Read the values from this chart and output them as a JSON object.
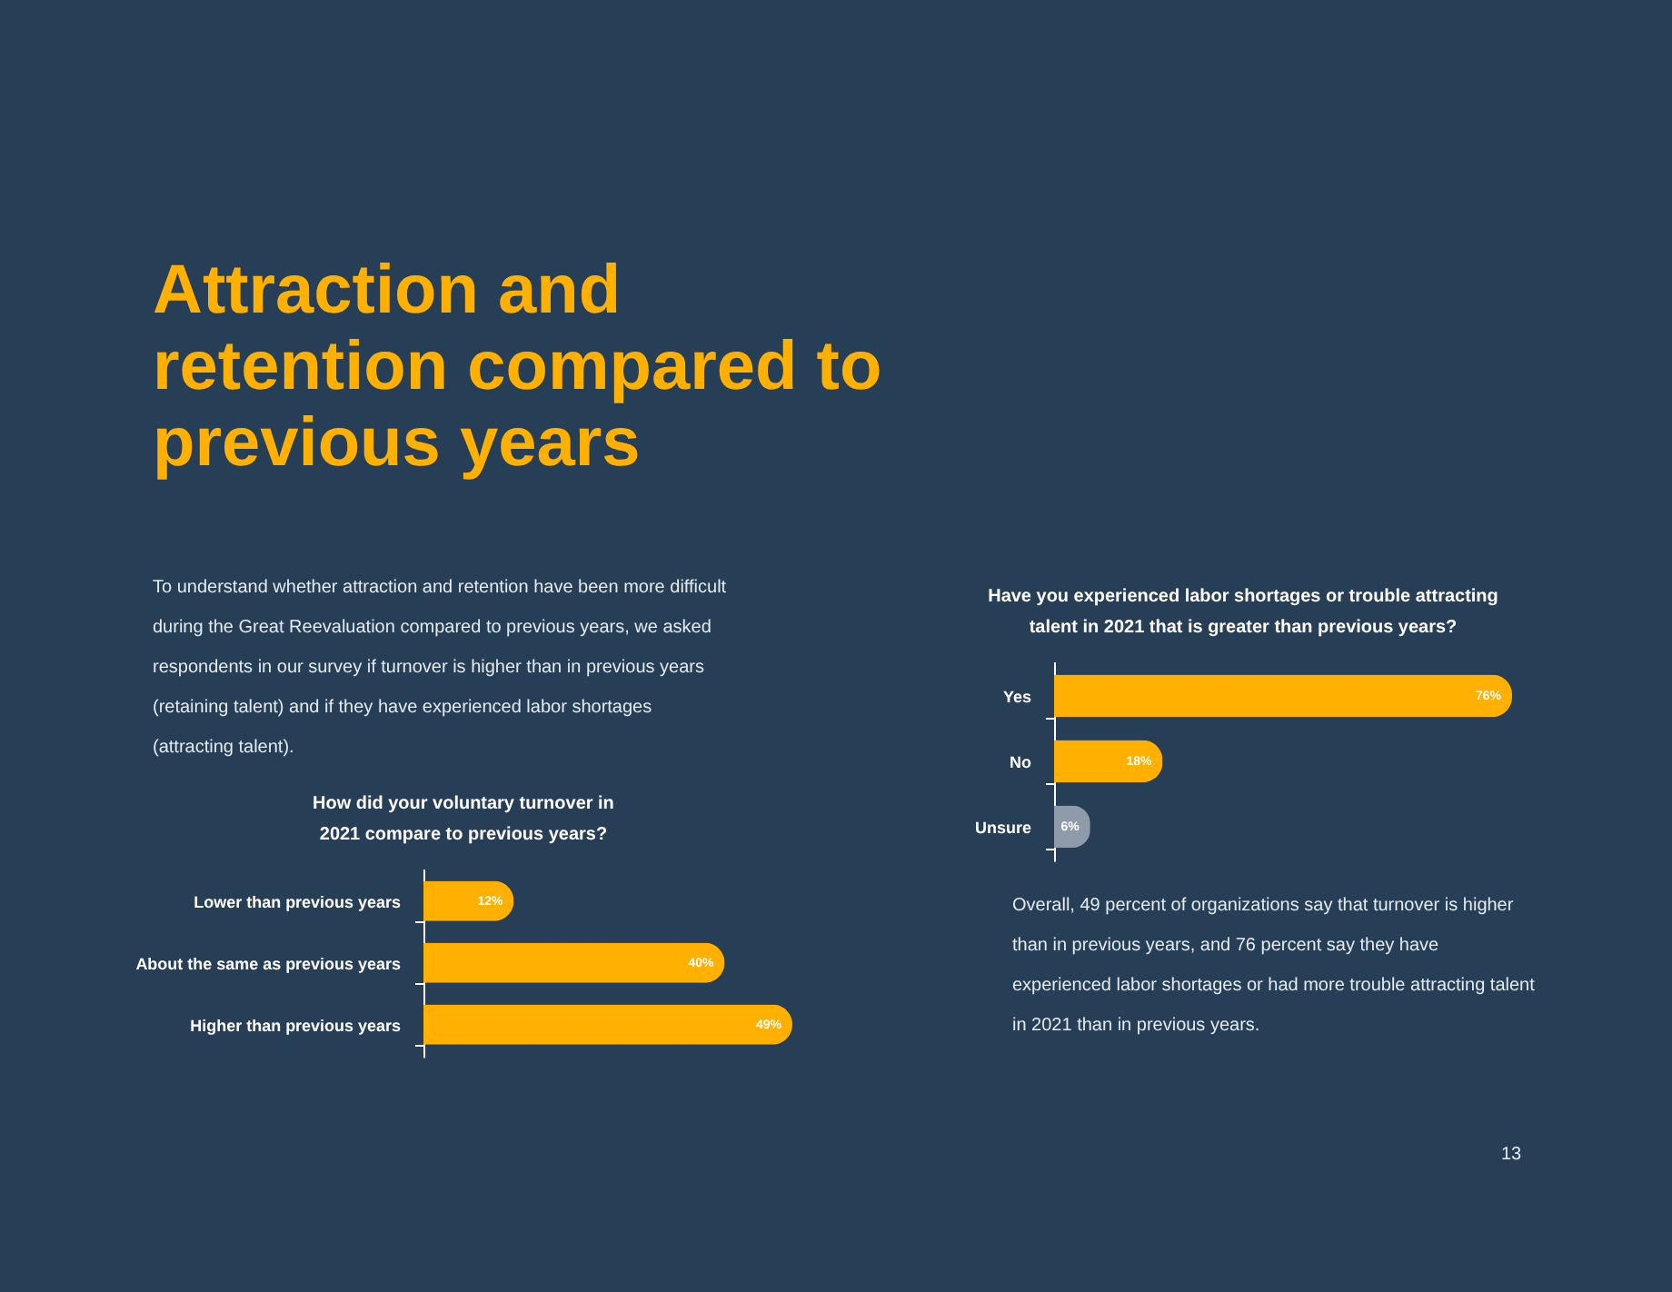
{
  "chart_data": [
    {
      "type": "other",
      "title": "Attraction and retention compared to previous years",
      "annotations": [
        "To understand whether attraction and retention have been more difficult during the Great Reevaluation compared to previous years, we asked respondents in our survey if turnover is higher than in previous years (retaining talent) and if they have experienced labor shortages (attracting talent).",
        "Overall, 49 percent of organizations say that turnover is higher than in previous years, and 76 percent say they have experienced labor shortages or had more trouble attracting talent in 2021 than in previous years.",
        "13"
      ]
    },
    {
      "type": "bar",
      "orientation": "horizontal",
      "title": "How did your voluntary turnover in 2021 compare to previous years?",
      "categories": [
        "Lower than previous years",
        "About the same as previous years",
        "Higher than previous years"
      ],
      "values": [
        12,
        40,
        49
      ],
      "color": "#ffb000",
      "value_labels": [
        "12%",
        "40%",
        "49%"
      ]
    },
    {
      "type": "bar",
      "orientation": "horizontal",
      "title": "Have you experienced labor shortages or trouble attracting talent in 2021 that is greater than previous years?",
      "categories": [
        "Yes",
        "No",
        "Unsure"
      ],
      "values": [
        76,
        18,
        6
      ],
      "colors": [
        "#ffb000",
        "#ffb000",
        "#8f9bab"
      ],
      "value_labels": [
        "76%",
        "18%",
        "6%"
      ]
    }
  ]
}
